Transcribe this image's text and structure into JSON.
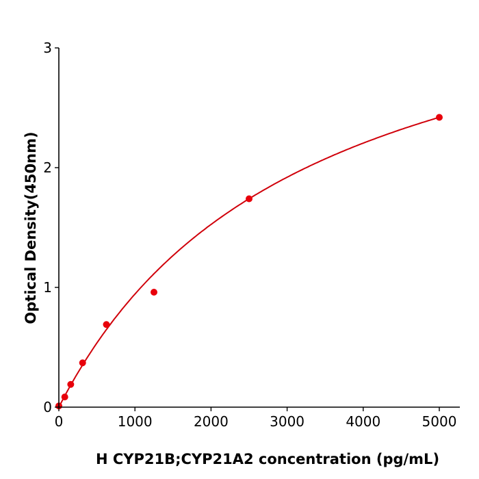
{
  "chart_data": {
    "type": "scatter",
    "title": "",
    "xlabel": "H  CYP21B;CYP21A2 concentration (pg/mL)",
    "ylabel": "Optical Density(450nm)",
    "xlim": [
      0,
      5270
    ],
    "ylim": [
      0,
      3
    ],
    "xticks": [
      0,
      1000,
      2000,
      3000,
      4000,
      5000
    ],
    "yticks": [
      0,
      1,
      2,
      3
    ],
    "grid": false,
    "legend": "none",
    "colors": {
      "points": "#e8000b",
      "curve": "#d0000a",
      "axes": "#000000"
    },
    "series": [
      {
        "x": [
          0,
          78,
          156,
          312,
          625,
          1250,
          2500,
          5000
        ],
        "y": [
          0.01,
          0.085,
          0.19,
          0.37,
          0.69,
          0.96,
          1.74,
          2.42
        ]
      }
    ],
    "fit_curve": true
  }
}
